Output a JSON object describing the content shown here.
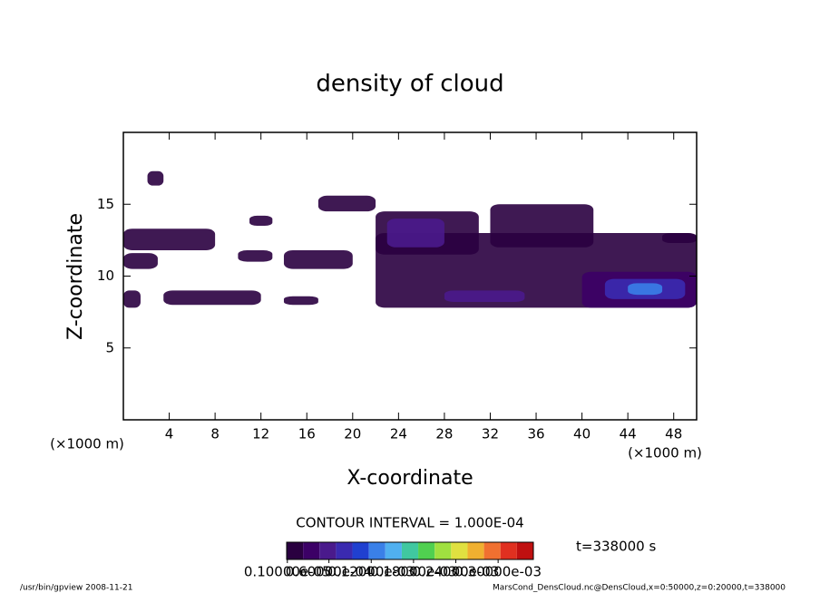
{
  "chart_data": {
    "type": "contour",
    "title": "density of cloud",
    "x_label": "X-coordinate",
    "y_label": "Z-coordinate",
    "x_unit": "(×1000 m)",
    "y_unit": "(×1000 m)",
    "xlim": [
      0,
      50
    ],
    "ylim": [
      0,
      20
    ],
    "xticks": [
      4,
      8,
      12,
      16,
      20,
      24,
      28,
      32,
      36,
      40,
      44,
      48
    ],
    "yticks": [
      5,
      10,
      15
    ],
    "contour_interval": "CONTOUR INTERVAL = 1.000E-04",
    "time_label": "t=338000 s",
    "colorbar": {
      "clim": [
        0,
        0.00035
      ],
      "colors": [
        "#2a0040",
        "#3c0066",
        "#4a1a8c",
        "#3a2ab0",
        "#2040d0",
        "#3a80e8",
        "#50b0f0",
        "#40c8a0",
        "#50d050",
        "#a0e040",
        "#e0e040",
        "#f0b030",
        "#f07030",
        "#e03020",
        "#c01010"
      ],
      "ticks": [
        {
          "value": 1e-06,
          "label": "0.10000e-05"
        },
        {
          "value": 6e-05,
          "label": "0.60000e-04"
        },
        {
          "value": 0.00012,
          "label": "0.12000e-03"
        },
        {
          "value": 0.00018,
          "label": "0.18000e-03"
        },
        {
          "value": 0.00024,
          "label": "0.24000e-03"
        },
        {
          "value": 0.0003,
          "label": "0.30000e-03"
        }
      ]
    },
    "regions": [
      {
        "x": [
          2.1,
          3.5
        ],
        "z": [
          16.3,
          17.3
        ],
        "value": 1e-05
      },
      {
        "x": [
          0,
          8
        ],
        "z": [
          11.8,
          13.3
        ],
        "value": 1e-05
      },
      {
        "x": [
          0,
          3
        ],
        "z": [
          10.5,
          11.6
        ],
        "value": 1e-05
      },
      {
        "x": [
          0,
          1.5
        ],
        "z": [
          7.8,
          9
        ],
        "value": 1e-05
      },
      {
        "x": [
          3.5,
          12
        ],
        "z": [
          8,
          9
        ],
        "value": 1e-05
      },
      {
        "x": [
          10,
          13
        ],
        "z": [
          11,
          11.8
        ],
        "value": 1e-05
      },
      {
        "x": [
          11,
          13
        ],
        "z": [
          13.5,
          14.2
        ],
        "value": 1e-05
      },
      {
        "x": [
          14,
          20
        ],
        "z": [
          10.5,
          11.8
        ],
        "value": 1e-05
      },
      {
        "x": [
          14,
          17
        ],
        "z": [
          8,
          8.6
        ],
        "value": 1e-05
      },
      {
        "x": [
          17,
          22
        ],
        "z": [
          14.5,
          15.6
        ],
        "value": 1e-05
      },
      {
        "x": [
          22,
          50
        ],
        "z": [
          7.8,
          13
        ],
        "value": 1e-05
      },
      {
        "x": [
          32,
          41
        ],
        "z": [
          12,
          15
        ],
        "value": 2e-05
      },
      {
        "x": [
          22,
          31
        ],
        "z": [
          11.5,
          14.5
        ],
        "value": 2e-05
      },
      {
        "x": [
          23,
          28
        ],
        "z": [
          12,
          14
        ],
        "value": 5e-05
      },
      {
        "x": [
          28,
          35
        ],
        "z": [
          8.2,
          9
        ],
        "value": 5e-05
      },
      {
        "x": [
          40,
          50
        ],
        "z": [
          7.8,
          10.3
        ],
        "value": 3e-05
      },
      {
        "x": [
          42,
          49
        ],
        "z": [
          8.4,
          9.8
        ],
        "value": 8e-05
      },
      {
        "x": [
          44,
          47
        ],
        "z": [
          8.7,
          9.5
        ],
        "value": 0.00012
      },
      {
        "x": [
          47,
          50
        ],
        "z": [
          12.3,
          13
        ],
        "value": 1e-05
      }
    ],
    "footer_left": "/usr/bin/gpview  2008-11-21",
    "footer_right": "MarsCond_DensCloud.nc@DensCloud,x=0:50000,z=0:20000,t=338000"
  }
}
